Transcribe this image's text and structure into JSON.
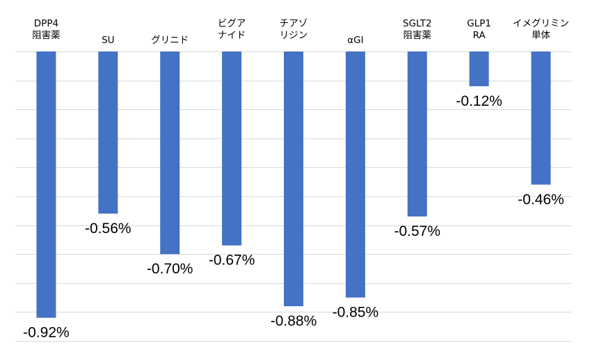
{
  "chart_data": {
    "type": "bar",
    "categories": [
      "DPP4\n阻害薬",
      "SU",
      "グリニド",
      "ビグア\nナイド",
      "チアゾ\nリジン",
      "αGI",
      "SGLT2\n阻害薬",
      "GLP1\nRA",
      "イメグリミン\n単体"
    ],
    "values": [
      -0.92,
      -0.56,
      -0.7,
      -0.67,
      -0.88,
      -0.85,
      -0.57,
      -0.12,
      -0.46
    ],
    "data_labels": [
      "-0.92%",
      "-0.56%",
      "-0.70%",
      "-0.67%",
      "-0.88%",
      "-0.85%",
      "-0.57%",
      "-0.12%",
      "-0.46%"
    ],
    "title": "",
    "xlabel": "",
    "ylabel": "",
    "ylim": [
      -1.0,
      0.0
    ],
    "grid": true,
    "legend": "none",
    "colors": {
      "bar": "#4472c4",
      "grid": "#d9d9d9",
      "text": "#000000"
    }
  }
}
